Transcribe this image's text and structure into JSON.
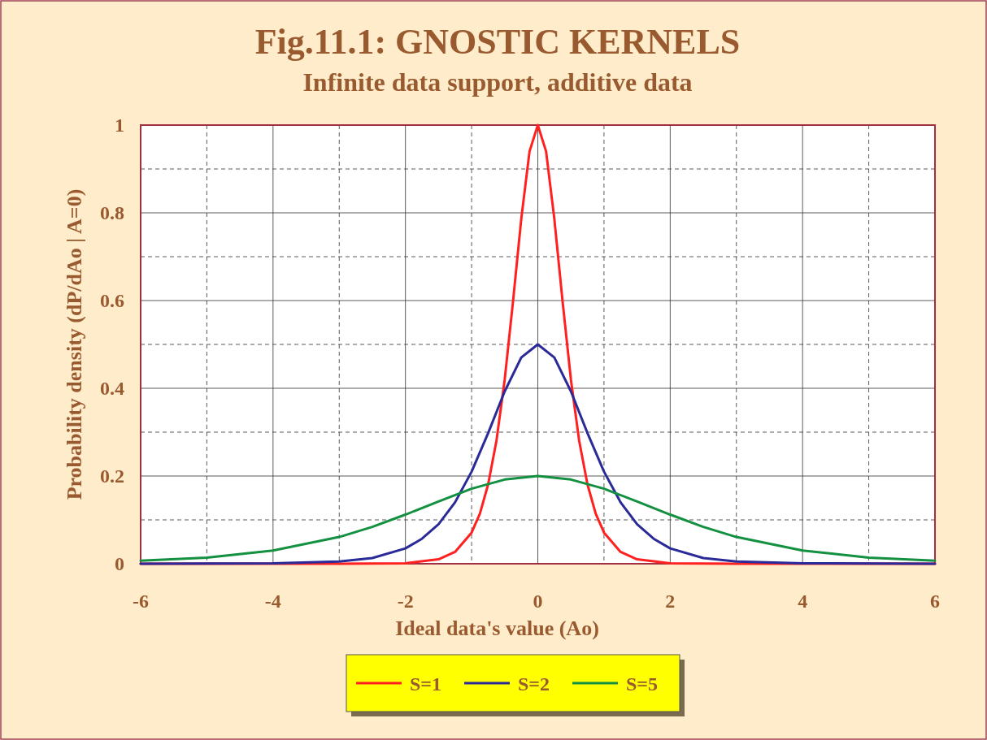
{
  "chart_data": {
    "type": "line",
    "title": "Fig.11.1: GNOSTIC KERNELS",
    "subtitle": "Infinite data support, additive data",
    "xlabel": "Ideal data's value (Ao)",
    "ylabel": "Probability density (dP/dAo | A=0)",
    "xlim": [
      -6,
      6
    ],
    "ylim": [
      0,
      1
    ],
    "xticks": [
      -6,
      {
        "value": -5,
        "label": null
      },
      -4,
      {
        "value": -3,
        "label": null
      },
      -2,
      {
        "value": -1,
        "label": null
      },
      0,
      {
        "value": 1,
        "label": null
      },
      2,
      {
        "value": 3,
        "label": null
      },
      4,
      {
        "value": 5,
        "label": null
      },
      6
    ],
    "yticks": [
      0,
      {
        "value": 0.1,
        "label": null
      },
      0.2,
      {
        "value": 0.3,
        "label": null
      },
      0.4,
      {
        "value": 0.5,
        "label": null
      },
      0.6,
      {
        "value": 0.7,
        "label": null
      },
      0.8,
      {
        "value": 0.9,
        "label": null
      },
      1
    ],
    "grid": true,
    "legend": "bottom",
    "marker": "none",
    "line_style": "solid",
    "series": [
      {
        "name": "S=1",
        "color": "#ff2020",
        "x": [
          -6,
          -3,
          -2,
          -1.5,
          -1.25,
          -1,
          -0.875,
          -0.75,
          -0.625,
          -0.5,
          -0.375,
          -0.25,
          -0.125,
          0,
          0.125,
          0.25,
          0.375,
          0.5,
          0.625,
          0.75,
          0.875,
          1,
          1.25,
          1.5,
          2,
          3,
          6
        ],
        "values": [
          0,
          0,
          0.001,
          0.01,
          0.027,
          0.071,
          0.114,
          0.181,
          0.28,
          0.42,
          0.597,
          0.786,
          0.94,
          1,
          0.94,
          0.786,
          0.597,
          0.42,
          0.28,
          0.181,
          0.114,
          0.071,
          0.027,
          0.01,
          0.001,
          0,
          0
        ]
      },
      {
        "name": "S=2",
        "color": "#2a2a98",
        "x": [
          -6,
          -4,
          -3,
          -2.5,
          -2,
          -1.75,
          -1.5,
          -1.25,
          -1,
          -0.75,
          -0.5,
          -0.25,
          0,
          0.25,
          0.5,
          0.75,
          1,
          1.25,
          1.5,
          1.75,
          2,
          2.5,
          3,
          4,
          6
        ],
        "values": [
          0,
          0.001,
          0.005,
          0.013,
          0.035,
          0.057,
          0.09,
          0.14,
          0.21,
          0.298,
          0.393,
          0.47,
          0.5,
          0.47,
          0.393,
          0.298,
          0.21,
          0.14,
          0.09,
          0.057,
          0.035,
          0.013,
          0.005,
          0.001,
          0
        ]
      },
      {
        "name": "S=5",
        "color": "#139040",
        "x": [
          -6,
          -5,
          -4,
          -3,
          -2.5,
          -2,
          -1.5,
          -1,
          -0.5,
          0,
          0.5,
          1,
          1.5,
          2,
          2.5,
          3,
          4,
          5,
          6
        ],
        "values": [
          0.007,
          0.014,
          0.03,
          0.061,
          0.084,
          0.112,
          0.142,
          0.171,
          0.192,
          0.2,
          0.192,
          0.171,
          0.142,
          0.112,
          0.084,
          0.061,
          0.03,
          0.014,
          0.007
        ]
      }
    ]
  }
}
